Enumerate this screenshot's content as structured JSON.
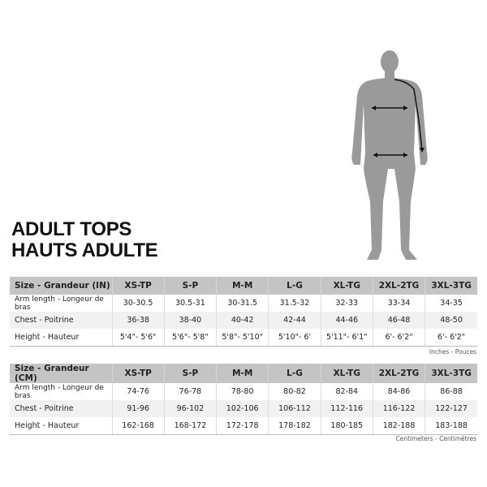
{
  "title": {
    "line1": "ADULT TOPS",
    "line2": "HAUTS ADULTE"
  },
  "figure": {
    "icon": "body-silhouette-measurements",
    "color": "#9a9a9a"
  },
  "inches": {
    "headers": [
      "Size - Grandeur (IN)",
      "XS-TP",
      "S-P",
      "M-M",
      "L-G",
      "XL-TG",
      "2XL-2TG",
      "3XL-3TG"
    ],
    "rows": [
      {
        "label": "Arm length - Longeur de bras",
        "values": [
          "30-30.5",
          "30.5-31",
          "30-31.5",
          "31.5-32",
          "32-33",
          "33-34",
          "34-35"
        ]
      },
      {
        "label": "Chest - Poitrine",
        "values": [
          "36-38",
          "38-40",
          "40-42",
          "42-44",
          "44-46",
          "46-48",
          "48-50"
        ]
      },
      {
        "label": "Height - Hauteur",
        "values": [
          "5'4\"- 5'6\"",
          "5'6\"- 5'8\"",
          "5'8\"- 5'10\"",
          "5'10\"- 6'",
          "5'11\"- 6'1\"",
          "6'- 6'2\"",
          "6'- 6'2\""
        ]
      }
    ],
    "unit_note": "Inches - Pouces"
  },
  "cm": {
    "headers": [
      "Size - Grandeur (CM)",
      "XS-TP",
      "S-P",
      "M-M",
      "L-G",
      "XL-TG",
      "2XL-2TG",
      "3XL-3TG"
    ],
    "rows": [
      {
        "label": "Arm length - Longeur de bras",
        "values": [
          "74-76",
          "76-78",
          "78-80",
          "80-82",
          "82-84",
          "84-86",
          "86-88"
        ]
      },
      {
        "label": "Chest - Poitrine",
        "values": [
          "91-96",
          "96-102",
          "102-106",
          "106-112",
          "112-116",
          "116-122",
          "122-127"
        ]
      },
      {
        "label": "Height - Hauteur",
        "values": [
          "162-168",
          "168-172",
          "172-178",
          "178-182",
          "180-185",
          "182-188",
          "183-188"
        ]
      }
    ],
    "unit_note": "Centimeters - Centimètres"
  },
  "colors": {
    "header_bg": "#c4c4c4",
    "alt_row": "#f1f1f1"
  }
}
